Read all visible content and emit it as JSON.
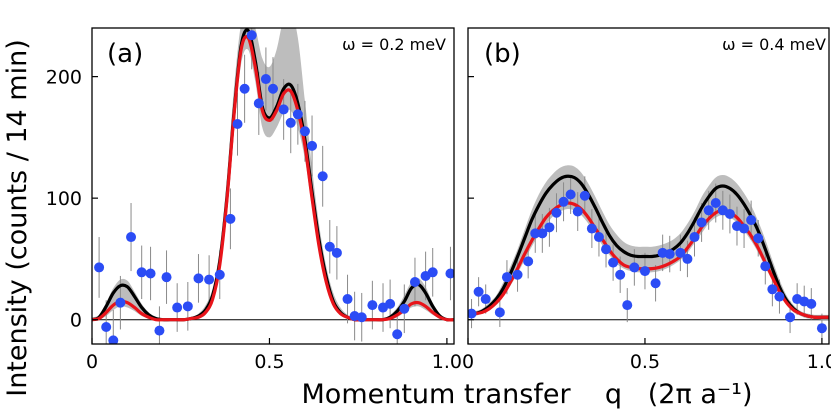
{
  "chart_data": {
    "type": "scatter",
    "ylabel": "Intensity (counts / 14 min)",
    "xlabel": "Momentum transfer    q   (2π a⁻¹)",
    "x_ticks": [
      "0",
      "0.5",
      "1.0"
    ],
    "y_ticks": [
      "0",
      "100",
      "200"
    ],
    "xlim": [
      0,
      1.02
    ],
    "ylim": [
      -20,
      240
    ],
    "colors": {
      "data": "#2b4cf5",
      "black_model": "#000000",
      "red_model": "#e8141a",
      "band": "#bdbdbd",
      "errorbar": "#8a8a8a"
    },
    "panels": [
      {
        "letter": "(a)",
        "omega": "ω = 0.2 meV",
        "points": [
          {
            "x": 0.02,
            "y": 43,
            "err": 25
          },
          {
            "x": 0.04,
            "y": -6,
            "err": 22
          },
          {
            "x": 0.06,
            "y": -17,
            "err": 25
          },
          {
            "x": 0.08,
            "y": 14,
            "err": 22
          },
          {
            "x": 0.11,
            "y": 68,
            "err": 28
          },
          {
            "x": 0.14,
            "y": 39,
            "err": 22
          },
          {
            "x": 0.165,
            "y": 38,
            "err": 22
          },
          {
            "x": 0.19,
            "y": -9,
            "err": 20
          },
          {
            "x": 0.21,
            "y": 35,
            "err": 22
          },
          {
            "x": 0.24,
            "y": 10,
            "err": 20
          },
          {
            "x": 0.27,
            "y": 11,
            "err": 20
          },
          {
            "x": 0.3,
            "y": 34,
            "err": 20
          },
          {
            "x": 0.33,
            "y": 33,
            "err": 20
          },
          {
            "x": 0.36,
            "y": 37,
            "err": 20
          },
          {
            "x": 0.39,
            "y": 83,
            "err": 25
          },
          {
            "x": 0.41,
            "y": 161,
            "err": 26
          },
          {
            "x": 0.43,
            "y": 190,
            "err": 28
          },
          {
            "x": 0.45,
            "y": 234,
            "err": 28
          },
          {
            "x": 0.47,
            "y": 178,
            "err": 26
          },
          {
            "x": 0.49,
            "y": 198,
            "err": 26
          },
          {
            "x": 0.51,
            "y": 190,
            "err": 26
          },
          {
            "x": 0.54,
            "y": 173,
            "err": 25
          },
          {
            "x": 0.56,
            "y": 162,
            "err": 25
          },
          {
            "x": 0.58,
            "y": 169,
            "err": 25
          },
          {
            "x": 0.6,
            "y": 155,
            "err": 25
          },
          {
            "x": 0.62,
            "y": 143,
            "err": 25
          },
          {
            "x": 0.65,
            "y": 118,
            "err": 25
          },
          {
            "x": 0.67,
            "y": 60,
            "err": 22
          },
          {
            "x": 0.69,
            "y": 55,
            "err": 22
          },
          {
            "x": 0.72,
            "y": 17,
            "err": 20
          },
          {
            "x": 0.74,
            "y": 3,
            "err": 20
          },
          {
            "x": 0.76,
            "y": 2,
            "err": 20
          },
          {
            "x": 0.79,
            "y": 12,
            "err": 20
          },
          {
            "x": 0.82,
            "y": 10,
            "err": 20
          },
          {
            "x": 0.84,
            "y": 13,
            "err": 20
          },
          {
            "x": 0.86,
            "y": -12,
            "err": 20
          },
          {
            "x": 0.88,
            "y": 9,
            "err": 20
          },
          {
            "x": 0.91,
            "y": 31,
            "err": 20
          },
          {
            "x": 0.94,
            "y": 36,
            "err": 20
          },
          {
            "x": 0.96,
            "y": 39,
            "err": 20
          },
          {
            "x": 1.01,
            "y": 38,
            "err": 22
          }
        ],
        "black_curve": {
          "x": [
            0.0,
            0.02,
            0.04,
            0.06,
            0.08,
            0.1,
            0.12,
            0.14,
            0.16,
            0.18,
            0.2,
            0.22,
            0.24,
            0.26,
            0.28,
            0.3,
            0.32,
            0.34,
            0.36,
            0.38,
            0.4,
            0.42,
            0.44,
            0.46,
            0.48,
            0.5,
            0.52,
            0.54,
            0.56,
            0.58,
            0.6,
            0.62,
            0.64,
            0.66,
            0.68,
            0.7,
            0.72,
            0.74,
            0.76,
            0.78,
            0.8,
            0.82,
            0.84,
            0.86,
            0.88,
            0.9,
            0.92,
            0.94,
            0.96,
            0.98,
            1.0,
            1.02
          ],
          "y": [
            0,
            2,
            11,
            22,
            28,
            27,
            19,
            10,
            4,
            1,
            0,
            0,
            0,
            0,
            1,
            3,
            8,
            20,
            48,
            100,
            170,
            225,
            238,
            213,
            175,
            166,
            175,
            190,
            193,
            178,
            148,
            105,
            65,
            35,
            15,
            6,
            2,
            0,
            0,
            0,
            0,
            0,
            2,
            7,
            15,
            26,
            29,
            22,
            11,
            3,
            0,
            0
          ]
        },
        "red_curve": {
          "x": [
            0.0,
            0.02,
            0.04,
            0.06,
            0.08,
            0.1,
            0.12,
            0.14,
            0.16,
            0.18,
            0.2,
            0.22,
            0.24,
            0.26,
            0.28,
            0.3,
            0.32,
            0.34,
            0.36,
            0.38,
            0.4,
            0.42,
            0.44,
            0.46,
            0.48,
            0.5,
            0.52,
            0.54,
            0.56,
            0.58,
            0.6,
            0.62,
            0.64,
            0.66,
            0.68,
            0.7,
            0.72,
            0.74,
            0.76,
            0.78,
            0.8,
            0.82,
            0.84,
            0.86,
            0.88,
            0.9,
            0.92,
            0.94,
            0.96,
            0.98,
            1.0,
            1.02
          ],
          "y": [
            0,
            1,
            6,
            12,
            15,
            14,
            10,
            5,
            2,
            0,
            0,
            0,
            0,
            0,
            1,
            2,
            6,
            17,
            45,
            98,
            168,
            222,
            232,
            208,
            172,
            164,
            172,
            186,
            188,
            172,
            143,
            100,
            60,
            31,
            13,
            5,
            2,
            0,
            0,
            0,
            0,
            0,
            1,
            4,
            8,
            13,
            14,
            11,
            6,
            2,
            0,
            0
          ]
        },
        "band_upper": [
          2,
          4,
          14,
          26,
          33,
          32,
          23,
          13,
          6,
          2,
          1,
          0,
          0,
          0,
          2,
          5,
          12,
          26,
          58,
          116,
          190,
          243,
          252,
          240,
          215,
          208,
          222,
          248,
          254,
          232,
          180,
          125,
          78,
          44,
          22,
          10,
          4,
          1,
          0,
          0,
          0,
          1,
          4,
          10,
          20,
          31,
          34,
          27,
          14,
          5,
          1,
          0
        ],
        "band_lower": [
          -1,
          0,
          3,
          8,
          11,
          10,
          7,
          3,
          1,
          0,
          0,
          0,
          0,
          0,
          0,
          1,
          4,
          14,
          38,
          86,
          155,
          210,
          222,
          196,
          158,
          150,
          158,
          170,
          172,
          158,
          132,
          92,
          55,
          28,
          11,
          4,
          1,
          0,
          0,
          0,
          0,
          0,
          0,
          2,
          6,
          10,
          11,
          8,
          4,
          1,
          0,
          0
        ]
      },
      {
        "letter": "(b)",
        "omega": "ω = 0.4 meV",
        "points": [
          {
            "x": 0.01,
            "y": 5,
            "err": 12
          },
          {
            "x": 0.03,
            "y": 23,
            "err": 12
          },
          {
            "x": 0.05,
            "y": 17,
            "err": 12
          },
          {
            "x": 0.09,
            "y": 6,
            "err": 12
          },
          {
            "x": 0.11,
            "y": 35,
            "err": 14
          },
          {
            "x": 0.14,
            "y": 37,
            "err": 14
          },
          {
            "x": 0.17,
            "y": 48,
            "err": 14
          },
          {
            "x": 0.19,
            "y": 71,
            "err": 16
          },
          {
            "x": 0.21,
            "y": 71,
            "err": 16
          },
          {
            "x": 0.23,
            "y": 76,
            "err": 16
          },
          {
            "x": 0.25,
            "y": 88,
            "err": 16
          },
          {
            "x": 0.27,
            "y": 97,
            "err": 16
          },
          {
            "x": 0.29,
            "y": 103,
            "err": 16
          },
          {
            "x": 0.31,
            "y": 89,
            "err": 16
          },
          {
            "x": 0.33,
            "y": 102,
            "err": 16
          },
          {
            "x": 0.35,
            "y": 75,
            "err": 16
          },
          {
            "x": 0.37,
            "y": 68,
            "err": 16
          },
          {
            "x": 0.39,
            "y": 58,
            "err": 15
          },
          {
            "x": 0.41,
            "y": 47,
            "err": 15
          },
          {
            "x": 0.43,
            "y": 37,
            "err": 15
          },
          {
            "x": 0.45,
            "y": 12,
            "err": 14
          },
          {
            "x": 0.47,
            "y": 43,
            "err": 15
          },
          {
            "x": 0.5,
            "y": 40,
            "err": 15
          },
          {
            "x": 0.53,
            "y": 30,
            "err": 15
          },
          {
            "x": 0.55,
            "y": 55,
            "err": 15
          },
          {
            "x": 0.57,
            "y": 54,
            "err": 15
          },
          {
            "x": 0.6,
            "y": 55,
            "err": 15
          },
          {
            "x": 0.62,
            "y": 50,
            "err": 15
          },
          {
            "x": 0.64,
            "y": 68,
            "err": 16
          },
          {
            "x": 0.66,
            "y": 80,
            "err": 16
          },
          {
            "x": 0.68,
            "y": 90,
            "err": 16
          },
          {
            "x": 0.7,
            "y": 96,
            "err": 16
          },
          {
            "x": 0.72,
            "y": 90,
            "err": 16
          },
          {
            "x": 0.74,
            "y": 87,
            "err": 16
          },
          {
            "x": 0.76,
            "y": 77,
            "err": 16
          },
          {
            "x": 0.78,
            "y": 75,
            "err": 16
          },
          {
            "x": 0.8,
            "y": 82,
            "err": 16
          },
          {
            "x": 0.82,
            "y": 67,
            "err": 15
          },
          {
            "x": 0.84,
            "y": 44,
            "err": 15
          },
          {
            "x": 0.86,
            "y": 25,
            "err": 14
          },
          {
            "x": 0.88,
            "y": 19,
            "err": 14
          },
          {
            "x": 0.91,
            "y": 2,
            "err": 13
          },
          {
            "x": 0.93,
            "y": 17,
            "err": 13
          },
          {
            "x": 0.95,
            "y": 15,
            "err": 13
          },
          {
            "x": 0.97,
            "y": 13,
            "err": 13
          },
          {
            "x": 1.0,
            "y": -7,
            "err": 12
          }
        ],
        "black_curve": {
          "x": [
            0.0,
            0.02,
            0.04,
            0.06,
            0.08,
            0.1,
            0.12,
            0.14,
            0.16,
            0.18,
            0.2,
            0.22,
            0.24,
            0.26,
            0.28,
            0.3,
            0.32,
            0.34,
            0.36,
            0.38,
            0.4,
            0.42,
            0.44,
            0.46,
            0.48,
            0.5,
            0.52,
            0.54,
            0.56,
            0.58,
            0.6,
            0.62,
            0.64,
            0.66,
            0.68,
            0.7,
            0.72,
            0.74,
            0.76,
            0.78,
            0.8,
            0.82,
            0.84,
            0.86,
            0.88,
            0.9,
            0.92,
            0.94,
            0.96,
            0.98,
            1.0,
            1.02
          ],
          "y": [
            4,
            5,
            7,
            11,
            17,
            26,
            38,
            52,
            67,
            82,
            94,
            104,
            111,
            116,
            118,
            117,
            112,
            103,
            92,
            80,
            69,
            61,
            56,
            53,
            52,
            52,
            52,
            53,
            55,
            58,
            63,
            71,
            81,
            92,
            101,
            108,
            110,
            108,
            103,
            95,
            85,
            73,
            58,
            42,
            27,
            16,
            9,
            5,
            3,
            2,
            2,
            2
          ]
        },
        "red_curve": {
          "x": [
            0.0,
            0.02,
            0.04,
            0.06,
            0.08,
            0.1,
            0.12,
            0.14,
            0.16,
            0.18,
            0.2,
            0.22,
            0.24,
            0.26,
            0.28,
            0.3,
            0.32,
            0.34,
            0.36,
            0.38,
            0.4,
            0.42,
            0.44,
            0.46,
            0.48,
            0.5,
            0.52,
            0.54,
            0.56,
            0.58,
            0.6,
            0.62,
            0.64,
            0.66,
            0.68,
            0.7,
            0.72,
            0.74,
            0.76,
            0.78,
            0.8,
            0.82,
            0.84,
            0.86,
            0.88,
            0.9,
            0.92,
            0.94,
            0.96,
            0.98,
            1.0,
            1.02
          ],
          "y": [
            4,
            5,
            6,
            9,
            14,
            21,
            31,
            42,
            54,
            65,
            75,
            84,
            90,
            94,
            96,
            95,
            91,
            84,
            75,
            66,
            57,
            50,
            45,
            43,
            42,
            42,
            42,
            43,
            45,
            48,
            52,
            59,
            67,
            76,
            83,
            88,
            90,
            88,
            84,
            77,
            69,
            59,
            47,
            35,
            23,
            14,
            8,
            5,
            3,
            2,
            2,
            2
          ]
        },
        "band_upper": [
          6,
          7,
          9,
          14,
          20,
          31,
          44,
          58,
          74,
          90,
          103,
          113,
          120,
          125,
          127,
          126,
          121,
          112,
          101,
          89,
          78,
          70,
          64,
          61,
          60,
          60,
          60,
          61,
          63,
          66,
          71,
          79,
          89,
          101,
          110,
          117,
          119,
          117,
          112,
          104,
          94,
          81,
          66,
          49,
          33,
          20,
          12,
          7,
          5,
          4,
          4,
          4
        ],
        "band_lower": [
          2,
          3,
          5,
          8,
          12,
          19,
          28,
          38,
          49,
          60,
          70,
          78,
          85,
          89,
          91,
          90,
          86,
          79,
          70,
          61,
          53,
          46,
          42,
          40,
          39,
          39,
          39,
          40,
          42,
          45,
          49,
          55,
          63,
          71,
          79,
          84,
          86,
          84,
          80,
          73,
          65,
          55,
          43,
          32,
          21,
          12,
          6,
          3,
          1,
          1,
          0,
          0
        ]
      }
    ]
  }
}
